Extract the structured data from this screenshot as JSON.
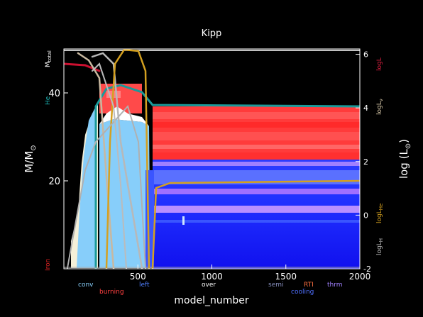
{
  "chart_data": {
    "type": "area",
    "title": "Kipp",
    "xlabel": "model_number",
    "ylabel_left": "M/M",
    "ylabel_left_sub": "⊙",
    "ylabel_right": "log (L",
    "ylabel_right_sub": "⊙",
    "ylabel_right_close": ")",
    "xlim": [
      0,
      2000
    ],
    "ylim_left": [
      0,
      50
    ],
    "ylim_right": [
      -2,
      6.2
    ],
    "x_ticks": [
      500,
      1000,
      1500,
      2000
    ],
    "y_left_ticks": [
      20,
      40
    ],
    "y_right_ticks": [
      -2,
      0,
      2,
      4,
      6
    ],
    "left_edge_labels": {
      "mtotal": "M",
      "mtotal_sub": "total",
      "he": "He",
      "iron": "Iron"
    },
    "right_edge_labels": {
      "logl": "logL",
      "loglnu": "logL",
      "loglnu_sub": "ν",
      "loglhe": "logL",
      "loglhe_sub": "He",
      "loglh": "logL",
      "loglh_sub": "H"
    },
    "legend": [
      {
        "label": "conv",
        "color": "#87cefa",
        "row": 1
      },
      {
        "label": "burning",
        "color": "#ff4040",
        "row": 2
      },
      {
        "label": "left",
        "color": "#4f7fff",
        "row": 1
      },
      {
        "label": "over",
        "color": "#ffffff",
        "row": 1
      },
      {
        "label": "semi",
        "color": "#8890c0",
        "row": 1
      },
      {
        "label": "RTI",
        "color": "#ff7040",
        "row": 1
      },
      {
        "label": "cooling",
        "color": "#5070ff",
        "row": 2
      },
      {
        "label": "thrm",
        "color": "#a080ff",
        "row": 1
      }
    ],
    "series": [
      {
        "name": "Mtotal",
        "x": [
          0,
          150,
          260,
          600,
          2000
        ],
        "y": [
          50.5,
          50.5,
          50.3,
          50.2,
          50.2
        ]
      },
      {
        "name": "He core",
        "x": [
          0,
          100,
          150,
          250,
          350,
          500,
          600,
          800,
          2000
        ],
        "y": [
          0,
          0,
          0,
          40,
          41,
          39.5,
          36.8,
          36.8,
          36.8
        ]
      },
      {
        "name": "logL",
        "x": [
          0,
          100,
          200,
          300,
          400,
          500,
          600,
          2000
        ],
        "y": [
          5.4,
          5.4,
          5.7,
          5.9,
          5.5,
          5.2,
          5.2,
          5.2
        ]
      },
      {
        "name": "logLnu",
        "x": [
          100,
          250,
          400,
          500,
          600,
          2000
        ],
        "y": [
          0,
          3.5,
          4.2,
          4.0,
          4.0,
          4.0
        ]
      },
      {
        "name": "logLHe",
        "x": [
          250,
          300,
          350,
          420,
          480,
          550,
          600,
          650,
          1000,
          2000
        ],
        "y": [
          0,
          5.0,
          6.1,
          6.0,
          4.0,
          0.5,
          -2,
          1.1,
          1.3,
          1.3
        ]
      },
      {
        "name": "logLH",
        "x": [
          0,
          150,
          250,
          400,
          550,
          600,
          2000
        ],
        "y": [
          0,
          0,
          2.5,
          3.0,
          2.0,
          0.6,
          0.6
        ]
      }
    ],
    "regions": [
      {
        "name": "convective envelope",
        "x": [
          0,
          2000
        ],
        "y": [
          0,
          33
        ]
      },
      {
        "name": "burning shell",
        "x": [
          620,
          2000
        ],
        "y": [
          22,
          37
        ]
      }
    ],
    "grid": false
  }
}
